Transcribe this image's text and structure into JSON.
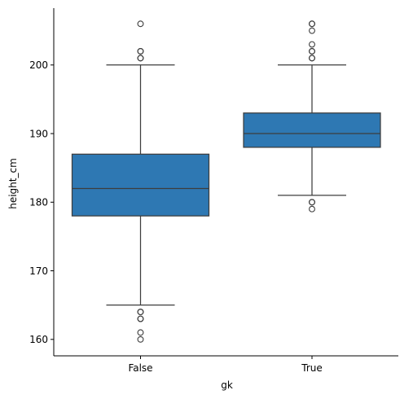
{
  "chart_data": {
    "type": "box",
    "xlabel": "gk",
    "ylabel": "height_cm",
    "ylim": [
      157.5,
      208.5
    ],
    "yticks": [
      160,
      170,
      180,
      190,
      200
    ],
    "grid": false,
    "box_color": "#2e78b3",
    "categories": [
      "False",
      "True"
    ],
    "boxes": [
      {
        "category": "False",
        "whisker_low": 165,
        "q1": 178,
        "median": 182,
        "q3": 187,
        "whisker_high": 200,
        "outliers": [
          160,
          161,
          163,
          163,
          164,
          164,
          201,
          201,
          202,
          202,
          206
        ]
      },
      {
        "category": "True",
        "whisker_low": 181,
        "q1": 188,
        "median": 190,
        "q3": 193,
        "whisker_high": 200,
        "outliers": [
          179,
          180,
          180,
          201,
          201,
          202,
          202,
          203,
          205,
          206,
          206
        ]
      }
    ]
  }
}
